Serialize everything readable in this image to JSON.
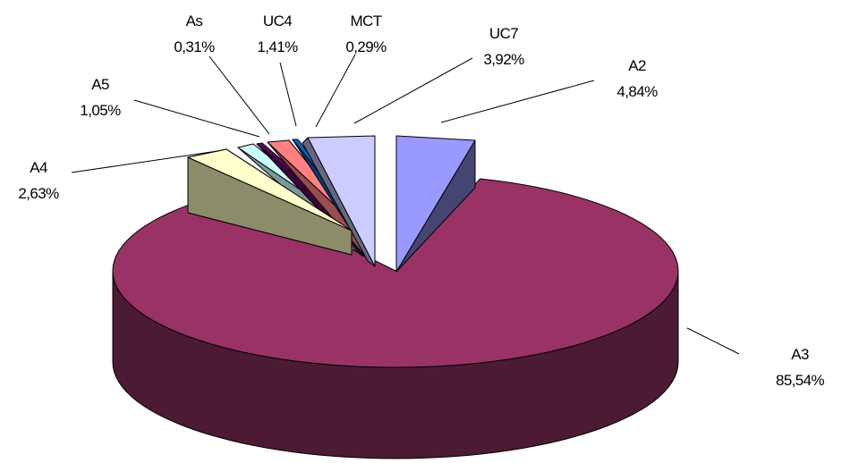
{
  "chart_data": {
    "type": "pie",
    "variant": "3d-exploded",
    "title": "",
    "categories": [
      "A2",
      "A3",
      "A4",
      "A5",
      "As",
      "UC4",
      "MCT",
      "UC7"
    ],
    "values": [
      4.84,
      85.54,
      2.63,
      1.05,
      0.31,
      1.41,
      0.29,
      3.92
    ],
    "value_labels": [
      "4,84%",
      "85,54%",
      "2,63%",
      "1,05%",
      "0,31%",
      "1,41%",
      "0,29%",
      "3,92%"
    ],
    "exploded": [
      "A2",
      "A4",
      "A5",
      "As",
      "UC4",
      "MCT",
      "UC7"
    ],
    "legend": "none",
    "colors": {
      "A2": "#9999ff",
      "A3": "#993366",
      "A4": "#ffffcc",
      "A5": "#ccffff",
      "As": "#660066",
      "UC4": "#ff8080",
      "MCT": "#0066cc",
      "UC7": "#ccccff"
    }
  }
}
